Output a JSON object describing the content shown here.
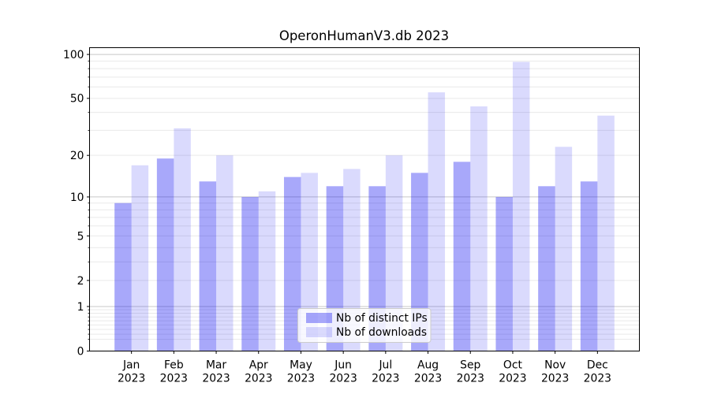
{
  "chart_data": {
    "type": "bar",
    "title": "OperonHumanV3.db 2023",
    "x_year": "2023",
    "categories": [
      "Jan",
      "Feb",
      "Mar",
      "Apr",
      "May",
      "Jun",
      "Jul",
      "Aug",
      "Sep",
      "Oct",
      "Nov",
      "Dec"
    ],
    "series": [
      {
        "name": "Nb of distinct IPs",
        "color": "#0505f0",
        "alpha": 0.35,
        "values": [
          9,
          19,
          13,
          10,
          14,
          12,
          12,
          15,
          18,
          10,
          12,
          13
        ]
      },
      {
        "name": "Nb of downloads",
        "color": "#0505f0",
        "alpha": 0.15,
        "values": [
          17,
          31,
          20,
          11,
          15,
          16,
          20,
          55,
          44,
          89,
          23,
          38
        ]
      }
    ],
    "yscale": "log1p",
    "ylim": [
      0,
      111
    ],
    "y_tick_values": [
      0,
      1,
      2,
      5,
      10,
      20,
      50,
      100
    ],
    "y_tick_labels": [
      "0",
      "1",
      "2",
      "5",
      "10",
      "20",
      "50",
      "100"
    ],
    "y_major_grid": [
      1,
      10,
      100
    ],
    "y_minor_grid": [
      0.2,
      0.3,
      0.4,
      0.5,
      0.6,
      0.7,
      0.8,
      0.9,
      2,
      3,
      4,
      5,
      6,
      7,
      8,
      9,
      20,
      30,
      40,
      50,
      60,
      70,
      80,
      90
    ],
    "grid": true,
    "legend": {
      "position": "lower center"
    },
    "colors": {
      "background": "#ffffff",
      "axis": "#000000",
      "grid_major": "#c8c8c8",
      "grid_minor": "#e9e9e9",
      "legend_border": "#cccccc",
      "legend_background": "rgba(255,255,255,0.8)"
    }
  }
}
